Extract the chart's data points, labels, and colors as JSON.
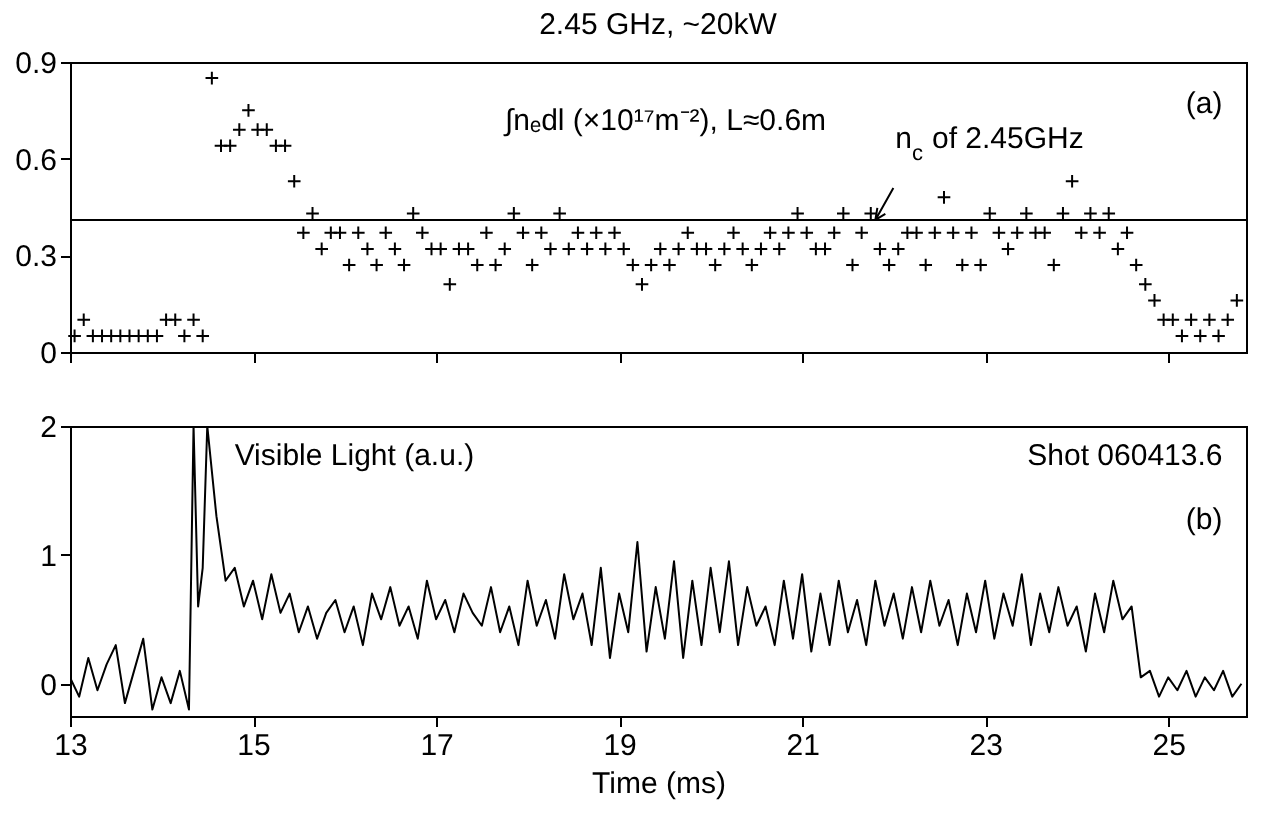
{
  "chart_data": [
    {
      "type": "scatter",
      "title": "2.45 GHz, ~20kW",
      "marker": "cross",
      "xlim": [
        13,
        25.85
      ],
      "xticks": [
        {
          "value": 13,
          "label": null
        },
        {
          "value": 15,
          "label": null
        },
        {
          "value": 17,
          "label": null
        },
        {
          "value": 19,
          "label": null
        },
        {
          "value": 21,
          "label": null
        },
        {
          "value": 23,
          "label": null
        },
        {
          "value": 25,
          "label": null
        }
      ],
      "ylim": [
        0,
        0.9
      ],
      "yticks": [
        0,
        0.3,
        0.6,
        0.9
      ],
      "tick_labels": "y",
      "grid": false,
      "legend": false,
      "ref_lines": [
        {
          "axis": "y",
          "value": 0.41,
          "color": "#000000"
        }
      ],
      "annotations": [
        "∫nₑdl (×10¹⁷m⁻²), L≈0.6m",
        {
          "text": "n$_{c}$ of 2.45GHz",
          "x": 21.8,
          "y": 0.41
        },
        "(a)"
      ],
      "series": [
        {
          "color": "#000000",
          "x": [
            13.05,
            13.15,
            13.25,
            13.35,
            13.45,
            13.55,
            13.65,
            13.75,
            13.85,
            13.95,
            14.05,
            14.15,
            14.25,
            14.35,
            14.45,
            14.55,
            14.65,
            14.75,
            14.85,
            14.95,
            15.05,
            15.15,
            15.25,
            15.35,
            15.45,
            15.55,
            15.65,
            15.75,
            15.85,
            15.95,
            16.05,
            16.15,
            16.25,
            16.35,
            16.45,
            16.55,
            16.65,
            16.75,
            16.85,
            16.95,
            17.05,
            17.15,
            17.25,
            17.35,
            17.45,
            17.55,
            17.65,
            17.75,
            17.85,
            17.95,
            18.05,
            18.15,
            18.25,
            18.35,
            18.45,
            18.55,
            18.65,
            18.75,
            18.85,
            18.95,
            19.05,
            19.15,
            19.25,
            19.35,
            19.45,
            19.55,
            19.65,
            19.75,
            19.85,
            19.95,
            20.05,
            20.15,
            20.25,
            20.35,
            20.45,
            20.55,
            20.65,
            20.75,
            20.85,
            20.95,
            21.05,
            21.15,
            21.25,
            21.35,
            21.45,
            21.55,
            21.65,
            21.75,
            21.85,
            21.95,
            22.05,
            22.15,
            22.25,
            22.35,
            22.45,
            22.55,
            22.65,
            22.75,
            22.85,
            22.95,
            23.05,
            23.15,
            23.25,
            23.35,
            23.45,
            23.55,
            23.65,
            23.75,
            23.85,
            23.95,
            24.05,
            24.15,
            24.25,
            24.35,
            24.45,
            24.55,
            24.65,
            24.75,
            24.85,
            24.95,
            25.05,
            25.15,
            25.25,
            25.35,
            25.45,
            25.55,
            25.65,
            25.75
          ],
          "values": [
            0.05,
            0.1,
            0.05,
            0.05,
            0.05,
            0.05,
            0.05,
            0.05,
            0.05,
            0.05,
            0.1,
            0.1,
            0.05,
            0.1,
            0.05,
            0.85,
            0.64,
            0.64,
            0.69,
            0.75,
            0.69,
            0.69,
            0.64,
            0.64,
            0.53,
            0.37,
            0.43,
            0.32,
            0.37,
            0.37,
            0.27,
            0.37,
            0.32,
            0.27,
            0.37,
            0.32,
            0.27,
            0.43,
            0.37,
            0.32,
            0.32,
            0.21,
            0.32,
            0.32,
            0.27,
            0.37,
            0.27,
            0.32,
            0.43,
            0.37,
            0.27,
            0.37,
            0.32,
            0.43,
            0.32,
            0.37,
            0.32,
            0.37,
            0.32,
            0.37,
            0.32,
            0.27,
            0.21,
            0.27,
            0.32,
            0.27,
            0.32,
            0.37,
            0.32,
            0.32,
            0.27,
            0.32,
            0.37,
            0.32,
            0.27,
            0.32,
            0.37,
            0.32,
            0.37,
            0.43,
            0.37,
            0.32,
            0.32,
            0.37,
            0.43,
            0.27,
            0.37,
            0.43,
            0.32,
            0.27,
            0.32,
            0.37,
            0.37,
            0.27,
            0.37,
            0.48,
            0.37,
            0.27,
            0.37,
            0.27,
            0.43,
            0.37,
            0.32,
            0.37,
            0.43,
            0.37,
            0.37,
            0.27,
            0.43,
            0.53,
            0.37,
            0.43,
            0.37,
            0.43,
            0.32,
            0.37,
            0.27,
            0.21,
            0.16,
            0.1,
            0.1,
            0.05,
            0.1,
            0.05,
            0.1,
            0.05,
            0.1,
            0.16
          ]
        }
      ]
    },
    {
      "type": "line",
      "xlabel": "Time (ms)",
      "xlim": [
        13,
        25.85
      ],
      "xticks": [
        13,
        15,
        17,
        19,
        21,
        23,
        25
      ],
      "ylim": [
        -0.25,
        2
      ],
      "yticks": [
        0,
        1,
        2
      ],
      "grid": false,
      "legend": false,
      "line_style": "solid",
      "annotations": [
        "Visible Light (a.u.)",
        "Shot 060413.6",
        "(b)"
      ],
      "series": [
        {
          "color": "#000000",
          "x": [
            13.0,
            13.1,
            13.2,
            13.3,
            13.4,
            13.5,
            13.6,
            13.7,
            13.8,
            13.9,
            14.0,
            14.1,
            14.2,
            14.3,
            14.35,
            14.4,
            14.45,
            14.5,
            14.6,
            14.7,
            14.8,
            14.9,
            15.0,
            15.1,
            15.2,
            15.3,
            15.4,
            15.5,
            15.6,
            15.7,
            15.8,
            15.9,
            16.0,
            16.1,
            16.2,
            16.3,
            16.4,
            16.5,
            16.6,
            16.7,
            16.8,
            16.9,
            17.0,
            17.1,
            17.2,
            17.3,
            17.4,
            17.5,
            17.6,
            17.7,
            17.8,
            17.9,
            18.0,
            18.1,
            18.2,
            18.3,
            18.4,
            18.5,
            18.6,
            18.7,
            18.8,
            18.9,
            19.0,
            19.1,
            19.2,
            19.3,
            19.4,
            19.5,
            19.6,
            19.7,
            19.8,
            19.9,
            20.0,
            20.1,
            20.2,
            20.3,
            20.4,
            20.5,
            20.6,
            20.7,
            20.8,
            20.9,
            21.0,
            21.1,
            21.2,
            21.3,
            21.4,
            21.5,
            21.6,
            21.7,
            21.8,
            21.9,
            22.0,
            22.1,
            22.2,
            22.3,
            22.4,
            22.5,
            22.6,
            22.7,
            22.8,
            22.9,
            23.0,
            23.1,
            23.2,
            23.3,
            23.4,
            23.5,
            23.6,
            23.7,
            23.8,
            23.9,
            24.0,
            24.1,
            24.2,
            24.3,
            24.4,
            24.5,
            24.6,
            24.7,
            24.8,
            24.9,
            25.0,
            25.1,
            25.2,
            25.3,
            25.4,
            25.5,
            25.6,
            25.7,
            25.8
          ],
          "values": [
            0.05,
            -0.1,
            0.2,
            -0.05,
            0.15,
            0.3,
            -0.15,
            0.1,
            0.35,
            -0.2,
            0.05,
            -0.15,
            0.1,
            -0.2,
            2,
            0.6,
            0.9,
            2,
            1.3,
            0.8,
            0.9,
            0.6,
            0.8,
            0.5,
            0.85,
            0.55,
            0.7,
            0.4,
            0.6,
            0.35,
            0.55,
            0.65,
            0.4,
            0.6,
            0.3,
            0.7,
            0.5,
            0.75,
            0.45,
            0.6,
            0.35,
            0.8,
            0.5,
            0.65,
            0.4,
            0.7,
            0.55,
            0.45,
            0.75,
            0.4,
            0.6,
            0.3,
            0.8,
            0.45,
            0.65,
            0.35,
            0.85,
            0.5,
            0.7,
            0.3,
            0.9,
            0.2,
            0.7,
            0.4,
            1.1,
            0.25,
            0.75,
            0.35,
            0.95,
            0.2,
            0.8,
            0.3,
            0.9,
            0.4,
            0.95,
            0.3,
            0.75,
            0.45,
            0.6,
            0.3,
            0.8,
            0.35,
            0.85,
            0.25,
            0.7,
            0.3,
            0.8,
            0.4,
            0.65,
            0.3,
            0.8,
            0.45,
            0.7,
            0.35,
            0.75,
            0.4,
            0.8,
            0.45,
            0.65,
            0.3,
            0.7,
            0.4,
            0.8,
            0.35,
            0.7,
            0.45,
            0.85,
            0.3,
            0.7,
            0.4,
            0.75,
            0.45,
            0.6,
            0.25,
            0.7,
            0.4,
            0.8,
            0.5,
            0.6,
            0.05,
            0.1,
            -0.1,
            0.05,
            -0.05,
            0.1,
            -0.1,
            0.05,
            -0.05,
            0.1,
            -0.1,
            0.0
          ]
        }
      ]
    }
  ]
}
